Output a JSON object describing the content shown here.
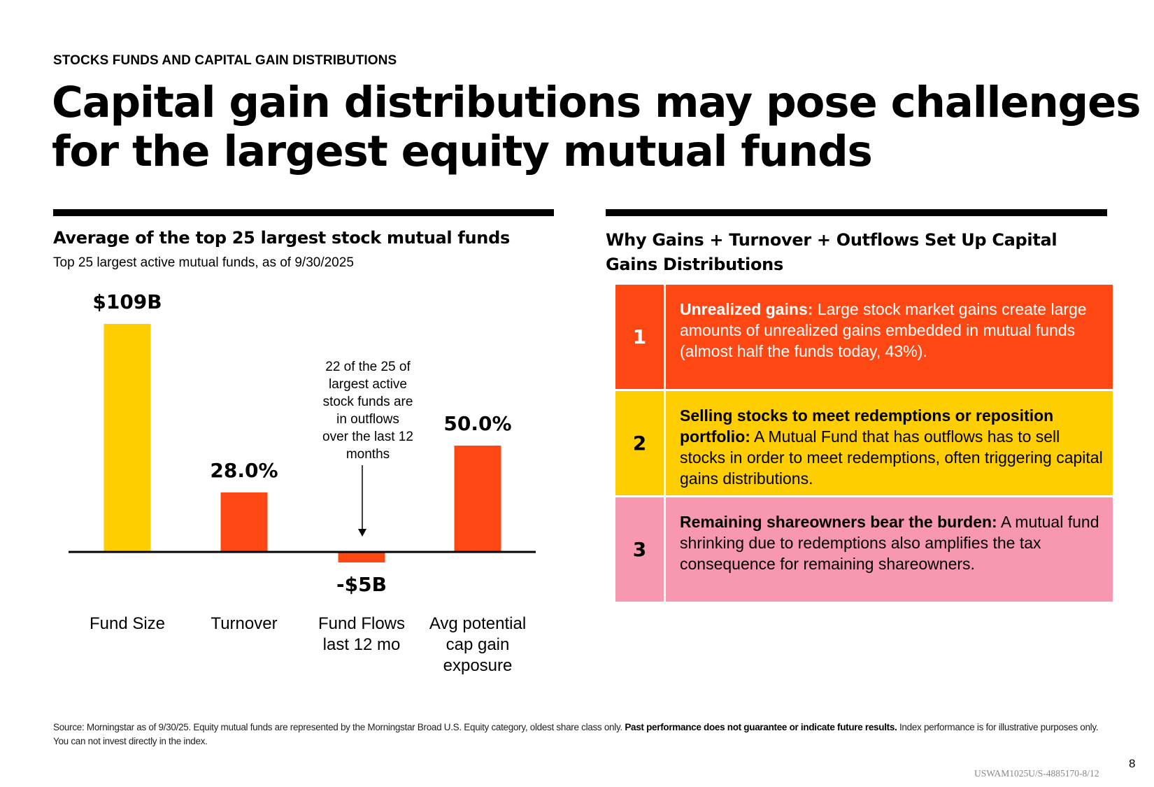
{
  "header": {
    "eyebrow": "STOCKS FUNDS AND CAPITAL GAIN DISTRIBUTIONS",
    "title": "Capital gain distributions may pose challenges for the largest equity mutual funds"
  },
  "left_panel": {
    "title": "Average of the top 25 largest stock mutual funds",
    "subtitle": "Top 25 largest active mutual funds, as of 9/30/2025"
  },
  "chart_data": {
    "type": "bar",
    "title": "Average of the top 25 largest stock mutual funds",
    "subtitle": "Top 25 largest active mutual funds, as of 9/30/2025",
    "xlabel": "",
    "ylabel": "",
    "grid": false,
    "categories": [
      "Fund Size",
      "Turnover",
      "Fund Flows last 12 mo",
      "Avg potential cap gain exposure"
    ],
    "category_lines": [
      [
        "Fund Size"
      ],
      [
        "Turnover"
      ],
      [
        "Fund Flows",
        "last 12 mo"
      ],
      [
        "Avg potential",
        "cap gain",
        "exposure"
      ]
    ],
    "values": [
      109,
      28.0,
      -5,
      50.0
    ],
    "units": [
      "$B",
      "%",
      "$B",
      "%"
    ],
    "value_labels": [
      "$109B",
      "28.0%",
      "-$5B",
      "50.0%"
    ],
    "bar_colors": [
      "#ffce00",
      "#ff4713",
      "#ff4713",
      "#ff4713"
    ],
    "annotation": {
      "lines": [
        "22 of the 25 of",
        "largest active",
        "stock funds are",
        "in outflows",
        "over the last 12",
        "months"
      ],
      "target_category": "Fund Flows last 12 mo"
    }
  },
  "right_panel": {
    "title": "Why Gains + Turnover + Outflows Set Up Capital Gains Distributions",
    "steps": [
      {
        "number": "1",
        "heading": "Unrealized gains:",
        "body": " Large stock market gains create large amounts of unrealized gains embedded in mutual funds (almost half the funds today, 43%).",
        "color": "#ff4713"
      },
      {
        "number": "2",
        "heading": "Selling stocks to meet redemptions or reposition portfolio:",
        "body": "  A Mutual Fund that has outflows has to sell stocks in order to meet redemptions, often triggering capital gains distributions.",
        "color": "#ffce00"
      },
      {
        "number": "3",
        "heading": "Remaining shareowners bear the burden:",
        "body": "  A mutual fund shrinking due to redemptions also amplifies the tax consequence for remaining shareowners.",
        "color": "#f797b0"
      }
    ]
  },
  "footer": {
    "source": "Source: Morningstar as of 9/30/25. Equity mutual funds are represented by the Morningstar Broad U.S. Equity category, oldest share class only. ",
    "disclaimer_bold": "Past performance does not guarantee or indicate future results.",
    "disclaimer_tail": "  Index performance is for illustrative purposes only. You can not invest directly in the index.",
    "page_number": "8",
    "doc_code": "USWAM1025U/S-4885170-8/12"
  }
}
